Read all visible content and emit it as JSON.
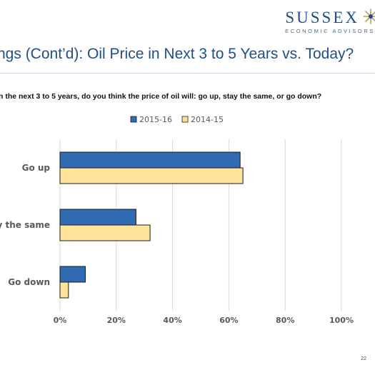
{
  "header": {
    "logo_word": "SUSSEX",
    "logo_sub": "ECONOMIC ADVISORS",
    "title": "ngs (Cont’d): Oil Price in Next 3 to 5 Years vs. Today?"
  },
  "question": "n the next 3 to 5 years, do you think the price of oil will: go up, stay the same, or go down?",
  "page_number": "22",
  "colors": {
    "accent": "#1f4e8c",
    "series_2015": "#2e6bb3",
    "series_2014": "#fde49a",
    "bar_outline": "#1a1a1a"
  },
  "chart_data": {
    "type": "bar",
    "orientation": "horizontal",
    "categories": [
      "Go up",
      "ay the same",
      "Go down"
    ],
    "series": [
      {
        "name": "2015-16",
        "values": [
          64,
          27,
          9
        ],
        "color": "#2e6bb3"
      },
      {
        "name": "2014-15",
        "values": [
          65,
          32,
          3
        ],
        "color": "#fde49a"
      }
    ],
    "xlim": [
      0,
      100
    ],
    "xticks": [
      "0%",
      "20%",
      "40%",
      "60%",
      "80%",
      "100%"
    ],
    "grid": true,
    "legend_position": "top"
  }
}
